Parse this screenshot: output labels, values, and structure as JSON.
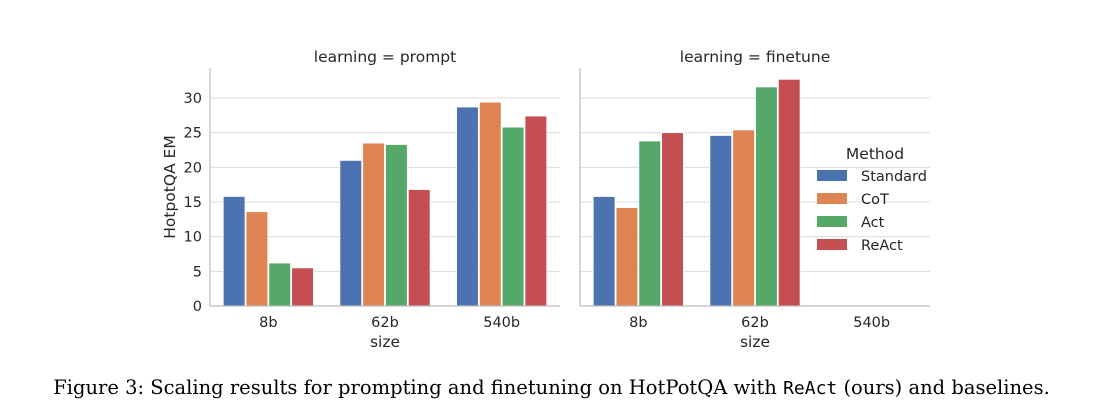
{
  "chart_data": {
    "type": "bar",
    "ylabel": "HotpotQA EM",
    "xlabel": "size",
    "ylim": [
      0,
      34
    ],
    "yticks": [
      "0",
      "5",
      "10",
      "15",
      "20",
      "25",
      "30"
    ],
    "ytick_values": [
      0,
      5,
      10,
      15,
      20,
      25,
      30
    ],
    "categories": [
      "8b",
      "62b",
      "540b"
    ],
    "legend": {
      "title": "Method",
      "placement": "right",
      "entries": [
        "Standard",
        "CoT",
        "Act",
        "ReAct"
      ]
    },
    "colors": {
      "Standard": "#4c72b0",
      "CoT": "#dd8452",
      "Act": "#55a868",
      "ReAct": "#c44e52"
    },
    "panels": [
      {
        "title": "learning = prompt",
        "series": [
          {
            "name": "Standard",
            "values": [
              15.8,
              21.0,
              28.7
            ]
          },
          {
            "name": "CoT",
            "values": [
              13.6,
              23.5,
              29.4
            ]
          },
          {
            "name": "Act",
            "values": [
              6.2,
              23.3,
              25.8
            ]
          },
          {
            "name": "ReAct",
            "values": [
              5.5,
              16.8,
              27.4
            ]
          }
        ]
      },
      {
        "title": "learning = finetune",
        "series": [
          {
            "name": "Standard",
            "values": [
              15.8,
              24.6,
              null
            ]
          },
          {
            "name": "CoT",
            "values": [
              14.2,
              25.4,
              null
            ]
          },
          {
            "name": "Act",
            "values": [
              23.8,
              31.6,
              null
            ]
          },
          {
            "name": "ReAct",
            "values": [
              25.0,
              32.7,
              null
            ]
          }
        ]
      }
    ]
  },
  "caption": {
    "prefix": "Figure 3: Scaling results for prompting and finetuning on HotPotQA with ",
    "code": "ReAct",
    "suffix": " (ours) and baselines."
  }
}
